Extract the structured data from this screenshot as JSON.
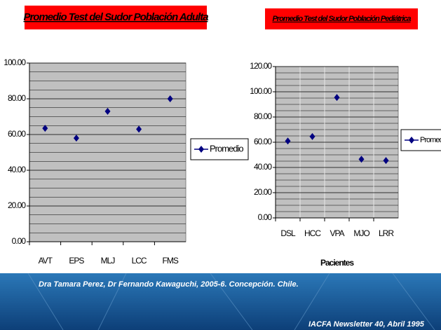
{
  "chart_data": [
    {
      "type": "line",
      "title": "Promedio Test del Sudor Población Adulta",
      "categories": [
        "AVT",
        "EPS",
        "MLJ",
        "LCC",
        "FMS"
      ],
      "series": [
        {
          "name": "Promedio",
          "color": "#000080",
          "values": [
            63.5,
            58,
            73,
            63,
            80
          ]
        }
      ],
      "ylim": [
        0,
        100
      ],
      "yticks": [
        {
          "value": 0,
          "label": "0.00"
        },
        {
          "value": 20,
          "label": "20.00"
        },
        {
          "value": 40,
          "label": "40.00"
        },
        {
          "value": 60,
          "label": "60.00"
        },
        {
          "value": 80,
          "label": "80.00"
        },
        {
          "value": 100,
          "label": "100.00"
        }
      ],
      "grid": true,
      "legend": "right"
    },
    {
      "type": "line",
      "title": "Promedio Test del Sudor Población Pediátrica",
      "categories": [
        "DSL",
        "HCC",
        "VPA",
        "MJO",
        "LRR"
      ],
      "series": [
        {
          "name": "Promedio",
          "color": "#000080",
          "values": [
            61,
            64.5,
            95.5,
            46.5,
            45.5
          ]
        }
      ],
      "x_label": "Pacientes",
      "ylim": [
        0,
        120
      ],
      "yticks": [
        {
          "value": 0,
          "label": "0.00"
        },
        {
          "value": 20,
          "label": "20.00"
        },
        {
          "value": 40,
          "label": "40.00"
        },
        {
          "value": 60,
          "label": "60.00"
        },
        {
          "value": 80,
          "label": "80.00"
        },
        {
          "value": 100,
          "label": "100.00"
        },
        {
          "value": 120,
          "label": "120.00"
        }
      ],
      "grid": true,
      "legend": "right"
    }
  ],
  "footer": {
    "credit": "Dra Tamara Perez, Dr Fernando Kawaguchi, 2005-6. Concepción. Chile.",
    "source": "IACFA Newsletter 40, Abril 1995"
  }
}
